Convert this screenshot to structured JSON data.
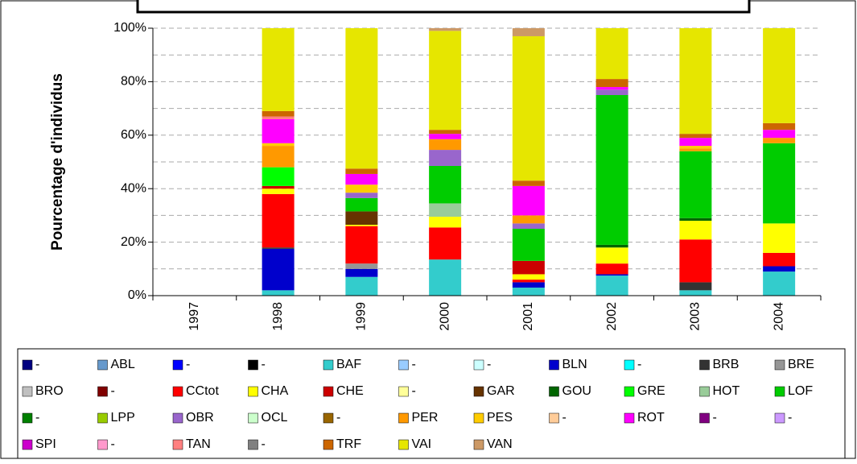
{
  "chart_data": {
    "type": "stacked_bar",
    "y_label": "Pourcentage d'individus",
    "categories": [
      "1997",
      "1998",
      "1999",
      "2000",
      "2001",
      "2002",
      "2003",
      "2004"
    ],
    "ylim": [
      0,
      100
    ],
    "yticks": [
      {
        "value": 0,
        "label": "0%"
      },
      {
        "value": 20,
        "label": "20%"
      },
      {
        "value": 40,
        "label": "40%"
      },
      {
        "value": 60,
        "label": "60%"
      },
      {
        "value": 80,
        "label": "80%"
      },
      {
        "value": 100,
        "label": "100%"
      }
    ],
    "minor_grid": [
      10,
      30,
      50,
      70,
      90
    ],
    "grid": true,
    "series": [
      {
        "name": "-",
        "color": "#000080",
        "values": [
          0,
          0,
          0,
          0,
          0,
          0,
          0,
          0
        ]
      },
      {
        "name": "ABL",
        "color": "#6699cc",
        "values": [
          0,
          0,
          0,
          0,
          0,
          0,
          0,
          0
        ]
      },
      {
        "name": "-",
        "color": "#0000ff",
        "values": [
          0,
          0,
          0,
          0,
          0,
          0,
          0,
          0
        ]
      },
      {
        "name": "-",
        "color": "#000000",
        "values": [
          0,
          0,
          0,
          0,
          0,
          0,
          0,
          0
        ]
      },
      {
        "name": "BAF",
        "color": "#33cccc",
        "values": [
          0,
          2,
          7,
          13.5,
          3,
          7.5,
          2,
          9
        ]
      },
      {
        "name": "-",
        "color": "#99ccff",
        "values": [
          0,
          0,
          0,
          0,
          0,
          0,
          0,
          0
        ]
      },
      {
        "name": "-",
        "color": "#ccffff",
        "values": [
          0,
          0,
          0,
          0,
          0,
          0,
          0,
          0
        ]
      },
      {
        "name": "BLN",
        "color": "#0000cc",
        "values": [
          0,
          15.5,
          3,
          0,
          2,
          0.5,
          0,
          2
        ]
      },
      {
        "name": "-",
        "color": "#00ffff",
        "values": [
          0,
          0,
          0,
          0,
          0,
          0,
          0,
          0
        ]
      },
      {
        "name": "BRB",
        "color": "#333333",
        "values": [
          0,
          0.5,
          0,
          0,
          0,
          0,
          3,
          0
        ]
      },
      {
        "name": "BRE",
        "color": "#969696",
        "values": [
          0,
          0,
          2,
          0,
          0,
          0,
          0,
          0
        ]
      },
      {
        "name": "BRO",
        "color": "#c0c0c0",
        "values": [
          0,
          0,
          0,
          0,
          0,
          0,
          0,
          0
        ]
      },
      {
        "name": "-",
        "color": "#800000",
        "values": [
          0,
          0,
          0,
          0,
          0,
          0,
          0,
          0
        ]
      },
      {
        "name": "CCtot",
        "color": "#ff0000",
        "values": [
          0,
          20,
          14,
          12,
          1,
          4,
          16,
          5
        ]
      },
      {
        "name": "CHA",
        "color": "#ffff00",
        "values": [
          0,
          2,
          0.5,
          4,
          2,
          6,
          7,
          11
        ]
      },
      {
        "name": "CHE",
        "color": "#cc0000",
        "values": [
          0,
          1,
          0,
          0,
          5,
          0,
          0,
          0
        ]
      },
      {
        "name": "-",
        "color": "#ffff99",
        "values": [
          0,
          0,
          0,
          0,
          0,
          0,
          0,
          0
        ]
      },
      {
        "name": "GAR",
        "color": "#663300",
        "values": [
          0,
          0,
          5,
          0,
          0,
          0,
          0,
          0
        ]
      },
      {
        "name": "GOU",
        "color": "#006600",
        "values": [
          0,
          0,
          0,
          0,
          0,
          1,
          1,
          0
        ]
      },
      {
        "name": "GRE",
        "color": "#00ff00",
        "values": [
          0,
          7,
          0,
          0,
          0,
          0,
          0,
          0
        ]
      },
      {
        "name": "HOT",
        "color": "#99cc99",
        "values": [
          0,
          0,
          0,
          5,
          0,
          0,
          0,
          0
        ]
      },
      {
        "name": "LOF",
        "color": "#00cc00",
        "values": [
          0,
          0,
          5,
          14,
          12,
          56,
          25,
          30
        ]
      },
      {
        "name": "-",
        "color": "#008000",
        "values": [
          0,
          0,
          0,
          0,
          0,
          0,
          0,
          0
        ]
      },
      {
        "name": "LPP",
        "color": "#99cc00",
        "values": [
          0,
          0,
          0,
          0,
          0,
          0,
          0,
          0
        ]
      },
      {
        "name": "OBR",
        "color": "#9966cc",
        "values": [
          0,
          0,
          2,
          6,
          2,
          2,
          0,
          0
        ]
      },
      {
        "name": "OCL",
        "color": "#ccffcc",
        "values": [
          0,
          0,
          0,
          0,
          0,
          0,
          0,
          0
        ]
      },
      {
        "name": "-",
        "color": "#996600",
        "values": [
          0,
          0,
          0,
          0,
          0,
          0,
          0,
          0
        ]
      },
      {
        "name": "PER",
        "color": "#ff9900",
        "values": [
          0,
          8,
          0,
          4,
          3,
          0,
          1,
          2
        ]
      },
      {
        "name": "PES",
        "color": "#ffcc00",
        "values": [
          0,
          1,
          3,
          0,
          0,
          0,
          1,
          0
        ]
      },
      {
        "name": "-",
        "color": "#ffcc99",
        "values": [
          0,
          0,
          0,
          0,
          0,
          0,
          0,
          0
        ]
      },
      {
        "name": "ROT",
        "color": "#ff00ff",
        "values": [
          0,
          9,
          4,
          2,
          11,
          1,
          3,
          3
        ]
      },
      {
        "name": "-",
        "color": "#800080",
        "values": [
          0,
          0,
          0,
          0,
          0,
          0,
          0,
          0
        ]
      },
      {
        "name": "-",
        "color": "#cc99ff",
        "values": [
          0,
          0,
          0,
          0,
          0,
          0,
          0,
          0
        ]
      },
      {
        "name": "SPI",
        "color": "#cc00cc",
        "values": [
          0,
          0,
          0,
          0,
          0,
          0,
          0,
          0
        ]
      },
      {
        "name": "-",
        "color": "#ff99cc",
        "values": [
          0,
          0,
          0,
          0,
          0,
          0,
          0,
          0
        ]
      },
      {
        "name": "TAN",
        "color": "#ff8080",
        "values": [
          0,
          1,
          0,
          0,
          0,
          0,
          0,
          0
        ]
      },
      {
        "name": "-",
        "color": "#808080",
        "values": [
          0,
          0,
          0,
          0,
          0,
          0,
          0,
          0
        ]
      },
      {
        "name": "TRF",
        "color": "#cc6600",
        "values": [
          0,
          2,
          2,
          1.5,
          2,
          3,
          1.5,
          2.5
        ]
      },
      {
        "name": "VAI",
        "color": "#e6e600",
        "values": [
          0,
          31,
          52.5,
          37,
          54,
          19,
          39.5,
          35.5
        ]
      },
      {
        "name": "VAN",
        "color": "#cc9966",
        "values": [
          0,
          0,
          0,
          1,
          3,
          0,
          0,
          0
        ]
      }
    ]
  }
}
